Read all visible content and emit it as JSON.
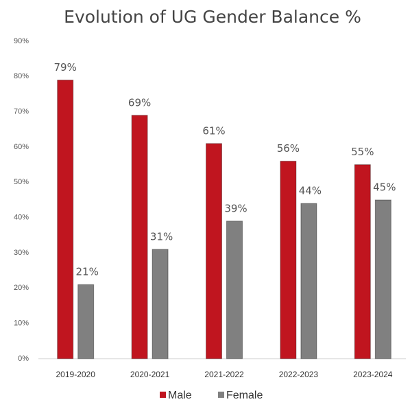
{
  "chart_data": {
    "type": "bar",
    "title": "Evolution of UG Gender Balance %",
    "categories": [
      "2019-2020",
      "2020-2021",
      "2021-2022",
      "2022-2023",
      "2023-2024"
    ],
    "series": [
      {
        "name": "Male",
        "color": "#c0151f",
        "values": [
          79,
          69,
          61,
          56,
          55
        ],
        "value_labels": [
          "79%",
          "69%",
          "61%",
          "56%",
          "55%"
        ]
      },
      {
        "name": "Female",
        "color": "#808080",
        "values": [
          21,
          31,
          39,
          44,
          45
        ],
        "value_labels": [
          "21%",
          "31%",
          "39%",
          "44%",
          "45%"
        ]
      }
    ],
    "ylim": [
      0,
      90
    ],
    "yticks": [
      {
        "value": 0,
        "label": "0%"
      },
      {
        "value": 10,
        "label": "10%"
      },
      {
        "value": 20,
        "label": "20%"
      },
      {
        "value": 30,
        "label": "30%"
      },
      {
        "value": 40,
        "label": "40%"
      },
      {
        "value": 50,
        "label": "50%"
      },
      {
        "value": 60,
        "label": "60%"
      },
      {
        "value": 70,
        "label": "70%"
      },
      {
        "value": 80,
        "label": "80%"
      },
      {
        "value": 90,
        "label": "90%"
      }
    ],
    "grid": false,
    "legend": "bottom"
  }
}
